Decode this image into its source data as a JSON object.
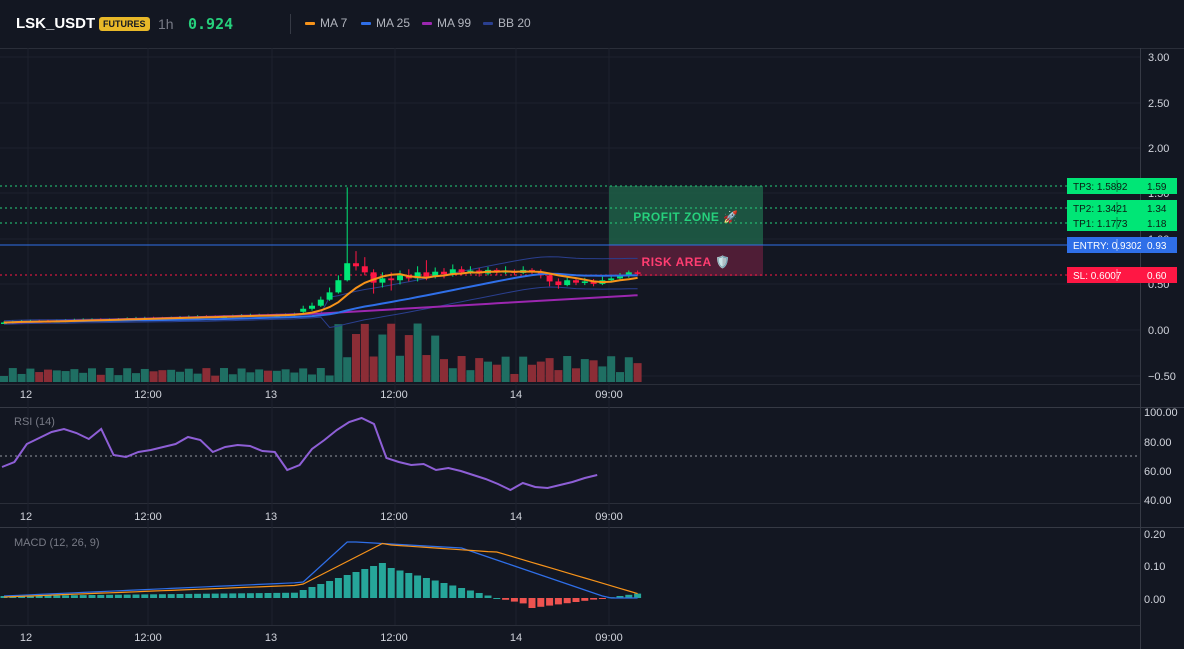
{
  "header": {
    "symbol": "LSK_USDT",
    "badge": "FUTURES",
    "timeframe": "1h",
    "price": "0.924",
    "legend": [
      {
        "label": "MA 7",
        "color": "#f7931a"
      },
      {
        "label": "MA 25",
        "color": "#2f6fe8"
      },
      {
        "label": "MA 99",
        "color": "#9c27b0"
      },
      {
        "label": "BB 20",
        "color": "#2a3f8f"
      }
    ]
  },
  "colors": {
    "up": "#26a69a",
    "down": "#ef5350",
    "bright_up": "#00e676",
    "bright_down": "#ff1744"
  },
  "price_axis": [
    "3.00",
    "2.50",
    "2.00",
    "1.50",
    "1.00",
    "0.50",
    "0.00",
    "−0.50"
  ],
  "time_axis": [
    "12",
    "12:00",
    "13",
    "12:00",
    "14",
    "09:00"
  ],
  "levels": {
    "tp3": {
      "label": "TP3: 1.5892",
      "value": "1.59"
    },
    "tp2": {
      "label": "TP2: 1.3421",
      "value": "1.34"
    },
    "tp1": {
      "label": "TP1: 1.1773",
      "value": "1.18"
    },
    "entry": {
      "label": "ENTRY: 0.9302",
      "value": "0.93"
    },
    "sl": {
      "label": "SL: 0.6007",
      "value": "0.60"
    }
  },
  "zones": {
    "profit": "PROFIT ZONE 🚀",
    "risk": "RISK AREA 🛡️"
  },
  "rsi": {
    "title": "RSI (14)",
    "axis": [
      "100.00",
      "80.00",
      "60.00",
      "40.00"
    ]
  },
  "macd": {
    "title": "MACD (12, 26, 9)",
    "axis": [
      "0.20",
      "0.10",
      "0.00"
    ]
  }
}
